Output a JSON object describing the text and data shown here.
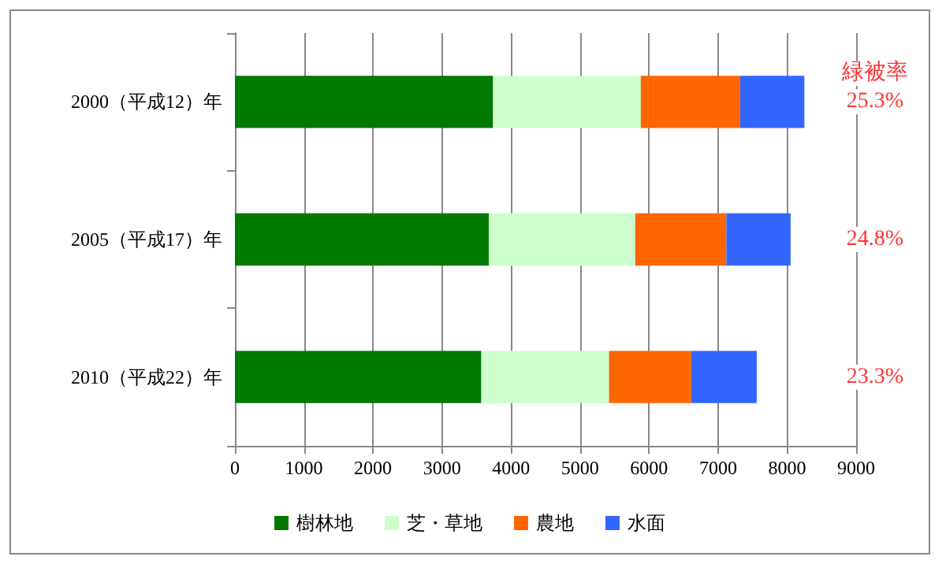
{
  "chart_data": {
    "type": "bar",
    "orientation": "horizontal",
    "stacked": true,
    "categories": [
      "2000（平成12）年",
      "2005（平成17）年",
      "2010（平成22）年"
    ],
    "series": [
      {
        "name": "樹林地",
        "color": "#007a00",
        "values": [
          3740,
          3680,
          3570
        ]
      },
      {
        "name": "芝・草地",
        "color": "#ccffcc",
        "values": [
          2140,
          2120,
          1850
        ]
      },
      {
        "name": "農地",
        "color": "#ff6600",
        "values": [
          1440,
          1320,
          1190
        ]
      },
      {
        "name": "水面",
        "color": "#3366ff",
        "values": [
          930,
          930,
          950
        ]
      }
    ],
    "xlim": [
      0,
      9000
    ],
    "xticks": [
      0,
      1000,
      2000,
      3000,
      4000,
      5000,
      6000,
      7000,
      8000,
      9000
    ],
    "grid": "x",
    "legend": "bottom",
    "annotations": [
      "緑被率",
      "25.3%",
      "24.8%",
      "23.3%"
    ]
  }
}
